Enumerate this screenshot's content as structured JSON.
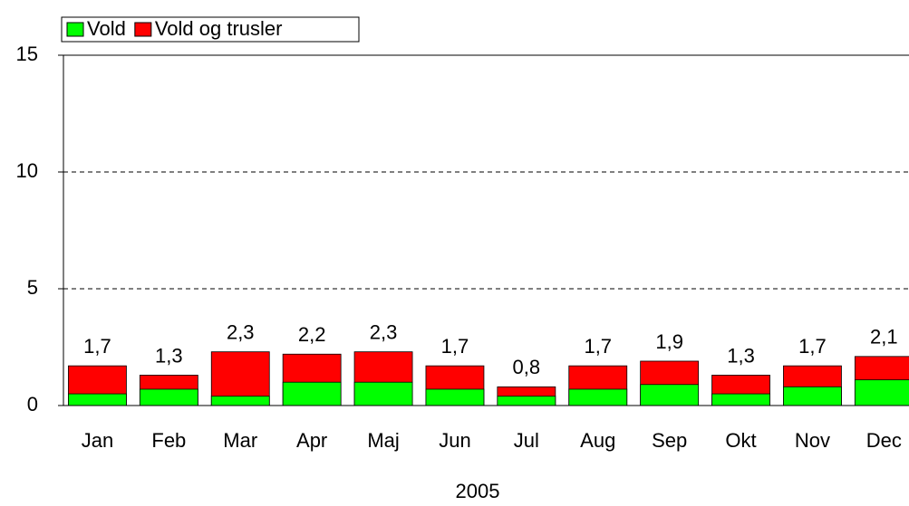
{
  "chart_data": {
    "type": "bar",
    "overlap": true,
    "xlabel": "2005",
    "categories": [
      "Jan",
      "Feb",
      "Mar",
      "Apr",
      "Maj",
      "Jun",
      "Jul",
      "Aug",
      "Sep",
      "Okt",
      "Nov",
      "Dec"
    ],
    "series": [
      {
        "name": "Vold",
        "color": "#00ff00",
        "values": [
          0.5,
          0.7,
          0.4,
          1.0,
          1.0,
          0.7,
          0.4,
          0.7,
          0.9,
          0.5,
          0.8,
          1.1
        ]
      },
      {
        "name": "Vold og trusler",
        "color": "#ff0000",
        "values": [
          1.7,
          1.3,
          2.3,
          2.2,
          2.3,
          1.7,
          0.8,
          1.7,
          1.9,
          1.3,
          1.7,
          2.1
        ],
        "value_labels": [
          "1,7",
          "1,3",
          "2,3",
          "2,2",
          "2,3",
          "1,7",
          "0,8",
          "1,7",
          "1,9",
          "1,3",
          "1,7",
          "2,1"
        ]
      }
    ],
    "ylim": [
      0,
      15
    ],
    "yticks": [
      0,
      5,
      10,
      15
    ],
    "grid": true,
    "legend": "top-left"
  }
}
